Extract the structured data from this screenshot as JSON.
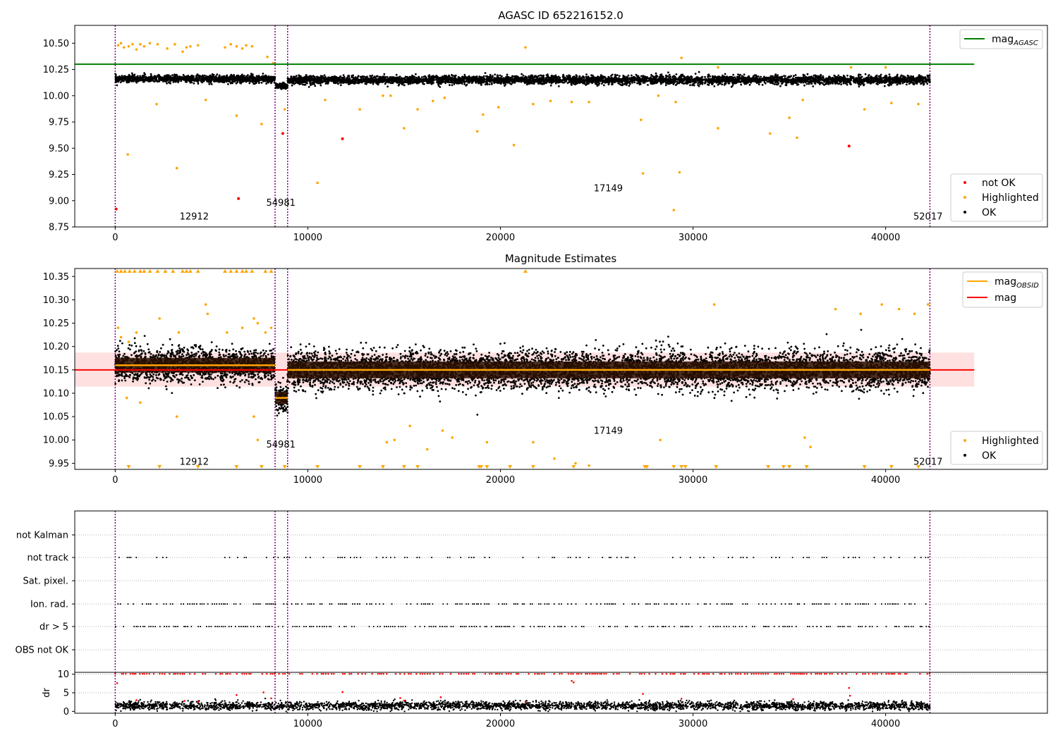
{
  "chart_data": [
    {
      "type": "scatter",
      "title": "AGASC ID 652216152.0",
      "xlim": [
        -2100,
        48400
      ],
      "ylim": [
        8.75,
        10.67
      ],
      "xticks": [
        0,
        10000,
        20000,
        30000,
        40000
      ],
      "yticks": [
        8.75,
        9.0,
        9.25,
        9.5,
        9.75,
        10.0,
        10.25,
        10.5
      ],
      "ytick_labels": [
        "8.75",
        "9.00",
        "9.25",
        "9.50",
        "9.75",
        "10.00",
        "10.25",
        "10.50"
      ],
      "hlines": [
        {
          "name": "mag_AGASC",
          "y": 10.3,
          "xmin": -2100,
          "xmax": 44600,
          "color": "#008000"
        }
      ],
      "vlines": [
        0,
        8300,
        8950,
        42300
      ],
      "obsid_labels": [
        {
          "text": "12912",
          "x": 4100,
          "y": 8.82
        },
        {
          "text": "54981",
          "x": 8600,
          "y": 8.95
        },
        {
          "text": "17149",
          "x": 25600,
          "y": 9.09
        },
        {
          "text": "52017",
          "x": 42200,
          "y": 8.82
        }
      ],
      "ok_segments": [
        {
          "x0": 0,
          "x1": 8300,
          "mag": 10.16,
          "spread": 0.035
        },
        {
          "x0": 8300,
          "x1": 8950,
          "mag": 10.09,
          "spread": 0.03
        },
        {
          "x0": 8950,
          "x1": 42300,
          "mag": 10.15,
          "spread": 0.04
        }
      ],
      "highlighted_points": [
        [
          150,
          10.48
        ],
        [
          300,
          10.5
        ],
        [
          450,
          10.46
        ],
        [
          700,
          10.47
        ],
        [
          900,
          10.49
        ],
        [
          1100,
          10.44
        ],
        [
          1300,
          10.49
        ],
        [
          1500,
          10.47
        ],
        [
          1800,
          10.5
        ],
        [
          2200,
          10.49
        ],
        [
          2700,
          10.45
        ],
        [
          3100,
          10.49
        ],
        [
          3500,
          10.42
        ],
        [
          3700,
          10.46
        ],
        [
          3900,
          10.47
        ],
        [
          4300,
          10.48
        ],
        [
          5700,
          10.46
        ],
        [
          6000,
          10.49
        ],
        [
          6300,
          10.47
        ],
        [
          6600,
          10.45
        ],
        [
          6800,
          10.48
        ],
        [
          7100,
          10.47
        ],
        [
          7900,
          10.37
        ],
        [
          8200,
          10.31
        ],
        [
          21300,
          10.46
        ],
        [
          29400,
          10.36
        ],
        [
          31300,
          10.27
        ],
        [
          38200,
          10.27
        ],
        [
          40000,
          10.27
        ],
        [
          650,
          9.44
        ],
        [
          2150,
          9.92
        ],
        [
          4700,
          9.96
        ],
        [
          6300,
          9.81
        ],
        [
          7600,
          9.73
        ],
        [
          8800,
          9.87
        ],
        [
          10900,
          9.96
        ],
        [
          12700,
          9.87
        ],
        [
          13900,
          10.0
        ],
        [
          14300,
          10.0
        ],
        [
          15000,
          9.69
        ],
        [
          15700,
          9.87
        ],
        [
          16500,
          9.95
        ],
        [
          17100,
          9.98
        ],
        [
          18800,
          9.66
        ],
        [
          19100,
          9.82
        ],
        [
          19900,
          9.89
        ],
        [
          20700,
          9.53
        ],
        [
          21700,
          9.92
        ],
        [
          22600,
          9.95
        ],
        [
          23700,
          9.94
        ],
        [
          24600,
          9.94
        ],
        [
          27300,
          9.77
        ],
        [
          28200,
          10.0
        ],
        [
          29100,
          9.94
        ],
        [
          31300,
          9.69
        ],
        [
          34000,
          9.64
        ],
        [
          35000,
          9.79
        ],
        [
          35400,
          9.6
        ],
        [
          35700,
          9.96
        ],
        [
          38900,
          9.87
        ],
        [
          40300,
          9.93
        ],
        [
          41700,
          9.92
        ],
        [
          3200,
          9.31
        ],
        [
          10500,
          9.17
        ],
        [
          27400,
          9.26
        ],
        [
          29300,
          9.27
        ],
        [
          29000,
          8.91
        ]
      ],
      "not_ok_points": [
        [
          50,
          8.92
        ],
        [
          6400,
          9.02
        ],
        [
          8700,
          9.64
        ],
        [
          11800,
          9.59
        ],
        [
          38100,
          9.52
        ]
      ],
      "legend": {
        "upper": [
          {
            "label": "mag",
            "sub": "AGASC",
            "color": "#008000",
            "kind": "line"
          }
        ],
        "lower": [
          {
            "label": "not OK",
            "color": "#ff0000",
            "kind": "dot"
          },
          {
            "label": "Highlighted",
            "color": "#ffa500",
            "kind": "dot"
          },
          {
            "label": "OK",
            "color": "#000000",
            "kind": "dot"
          }
        ]
      }
    },
    {
      "type": "scatter",
      "title": "Magnitude Estimates",
      "xlim": [
        -2100,
        48400
      ],
      "ylim": [
        9.937,
        10.367
      ],
      "xticks": [
        0,
        10000,
        20000,
        30000,
        40000
      ],
      "yticks": [
        9.95,
        10.0,
        10.05,
        10.1,
        10.15,
        10.2,
        10.25,
        10.3,
        10.35
      ],
      "ytick_labels": [
        "9.95",
        "10.00",
        "10.05",
        "10.10",
        "10.15",
        "10.20",
        "10.25",
        "10.30",
        "10.35"
      ],
      "vlines": [
        0,
        8300,
        8950,
        42300
      ],
      "mag": {
        "y": 10.15,
        "band": [
          10.114,
          10.187
        ],
        "xmin": -2100,
        "xmax": 44600,
        "color": "#ff0000"
      },
      "mag_obsid": [
        {
          "x0": 0,
          "x1": 8300,
          "y": 10.16
        },
        {
          "x0": 8300,
          "x1": 8950,
          "y": 10.09
        },
        {
          "x0": 8950,
          "x1": 42300,
          "y": 10.15
        }
      ],
      "obsid_labels": [
        {
          "text": "12912",
          "x": 4100,
          "y": 9.947
        },
        {
          "text": "54981",
          "x": 8600,
          "y": 9.984
        },
        {
          "text": "17149",
          "x": 25600,
          "y": 10.013
        },
        {
          "text": "52017",
          "x": 42200,
          "y": 9.947
        }
      ],
      "ok_segments": [
        {
          "x0": 0,
          "x1": 8300,
          "mag": 10.16,
          "spread": 0.035
        },
        {
          "x0": 8300,
          "x1": 8950,
          "mag": 10.09,
          "spread": 0.03
        },
        {
          "x0": 8950,
          "x1": 42300,
          "mag": 10.15,
          "spread": 0.04
        }
      ],
      "highlighted_points": [
        [
          150,
          10.24
        ],
        [
          300,
          10.22
        ],
        [
          700,
          10.21
        ],
        [
          1100,
          10.23
        ],
        [
          2300,
          10.26
        ],
        [
          3300,
          10.23
        ],
        [
          4700,
          10.29
        ],
        [
          4800,
          10.27
        ],
        [
          5800,
          10.23
        ],
        [
          6600,
          10.24
        ],
        [
          7200,
          10.26
        ],
        [
          7400,
          10.25
        ],
        [
          7800,
          10.23
        ],
        [
          8100,
          10.24
        ],
        [
          600,
          10.09
        ],
        [
          1300,
          10.08
        ],
        [
          3200,
          10.05
        ],
        [
          7200,
          10.05
        ],
        [
          7400,
          10.0
        ],
        [
          14100,
          9.995
        ],
        [
          14500,
          10.0
        ],
        [
          15300,
          10.03
        ],
        [
          16200,
          9.98
        ],
        [
          17000,
          10.02
        ],
        [
          17500,
          10.005
        ],
        [
          19300,
          9.995
        ],
        [
          21700,
          9.995
        ],
        [
          22800,
          9.96
        ],
        [
          23900,
          9.95
        ],
        [
          24600,
          9.945
        ],
        [
          28300,
          10.0
        ],
        [
          31100,
          10.29
        ],
        [
          35800,
          10.005
        ],
        [
          36100,
          9.985
        ],
        [
          37400,
          10.28
        ],
        [
          38700,
          10.27
        ],
        [
          39800,
          10.29
        ],
        [
          40700,
          10.28
        ],
        [
          41500,
          10.27
        ],
        [
          42200,
          10.29
        ]
      ],
      "high_markers": [
        100,
        300,
        500,
        750,
        1000,
        1300,
        1500,
        1800,
        2200,
        2600,
        3000,
        3500,
        3700,
        3900,
        4300,
        5700,
        6000,
        6300,
        6600,
        6800,
        7100,
        7800,
        8100,
        21300
      ],
      "low_markers": [
        700,
        2300,
        4300,
        6300,
        7600,
        8800,
        10500,
        12700,
        13900,
        15000,
        15700,
        18900,
        19000,
        19300,
        20500,
        21700,
        23800,
        27500,
        27600,
        29000,
        29400,
        29600,
        31200,
        33900,
        34700,
        35000,
        35900,
        38900,
        40300,
        41700
      ],
      "legend": {
        "upper": [
          {
            "label": "mag",
            "sub": "OBSID",
            "color": "#ffa500",
            "kind": "line"
          },
          {
            "label": "mag",
            "sub": "",
            "color": "#ff0000",
            "kind": "line"
          }
        ],
        "lower": [
          {
            "label": "Highlighted",
            "color": "#ffa500",
            "kind": "dot"
          },
          {
            "label": "OK",
            "color": "#000000",
            "kind": "dot"
          }
        ]
      }
    },
    {
      "type": "scatter",
      "title": "",
      "xlim": [
        -2100,
        48400
      ],
      "categories": [
        "not Kalman",
        "not track",
        "Sat. pixel.",
        "Ion. rad.",
        "dr > 5",
        "OBS not OK"
      ],
      "vlines": [
        0,
        8300,
        8950,
        42300
      ],
      "flag_density": {
        "not Kalman": 0,
        "not track": 0.25,
        "Sat. pixel.": 0,
        "Ion. rad.": 0.55,
        "dr > 5": 0.55,
        "OBS not OK": 0
      }
    },
    {
      "type": "scatter",
      "title": "",
      "xlim": [
        -2100,
        48400
      ],
      "ylim": [
        -0.5,
        10.5
      ],
      "ylabel": "dr",
      "xticks": [
        0,
        10000,
        20000,
        30000,
        40000
      ],
      "yticks": [
        0,
        5,
        10
      ],
      "ytick_labels": [
        "0",
        "5",
        "10"
      ],
      "vlines": [
        0,
        8300,
        8950,
        42300
      ],
      "dr_typical": 1.5,
      "dr_cap": 10,
      "outliers": [
        [
          100,
          7.6
        ],
        [
          1100,
          3.0
        ],
        [
          3600,
          2.8
        ],
        [
          4300,
          2.6
        ],
        [
          6300,
          4.4
        ],
        [
          7700,
          5.1
        ],
        [
          8100,
          3.5
        ],
        [
          11800,
          5.2
        ],
        [
          14800,
          3.6
        ],
        [
          15000,
          2.9
        ],
        [
          16900,
          3.8
        ],
        [
          21300,
          2.5
        ],
        [
          23700,
          8.2
        ],
        [
          23800,
          7.8
        ],
        [
          27400,
          4.7
        ],
        [
          29400,
          3.4
        ],
        [
          35200,
          3.3
        ],
        [
          38100,
          6.3
        ],
        [
          38150,
          4.2
        ]
      ]
    }
  ]
}
